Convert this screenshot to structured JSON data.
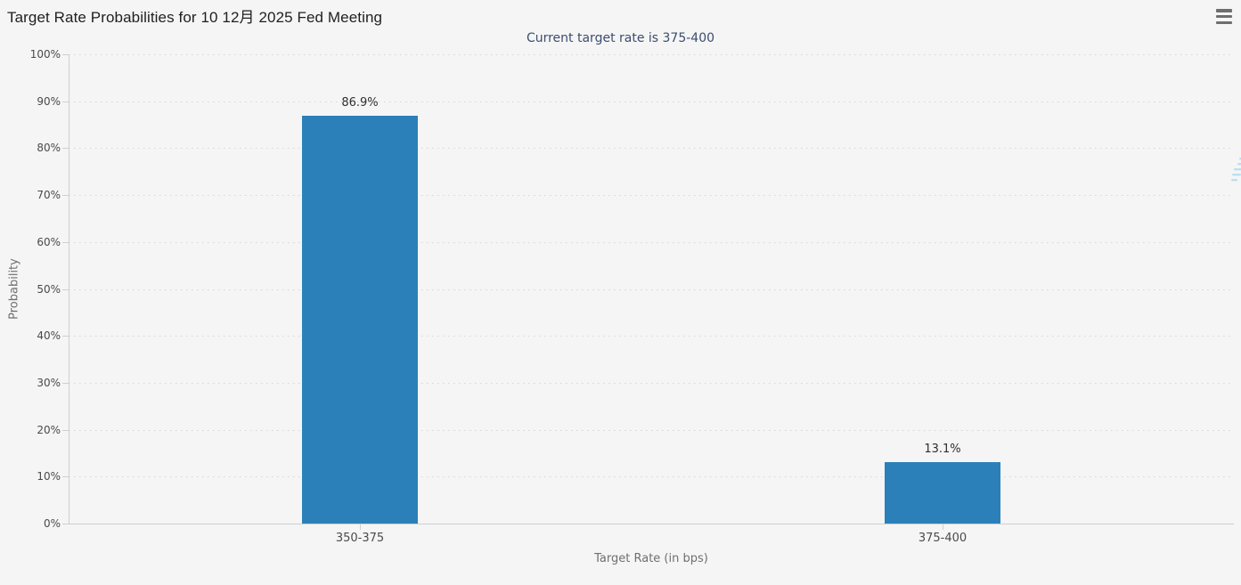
{
  "page": {
    "title": "Target Rate Probabilities for 10 12月 2025 Fed Meeting",
    "menu_icon": "hamburger-menu-icon",
    "watermark_letter": "Q"
  },
  "colors": {
    "background": "#f5f5f5",
    "bar": "#2b80b9",
    "title_text": "#1f1f1f",
    "subtitle_text": "#3c4d6e",
    "menu_icon": "#6e6e6e",
    "axis_line": "#cfcfcf",
    "grid_dots": "#d5d5d5"
  },
  "chart_data": {
    "type": "bar",
    "title": "Target Rate Probabilities for 10 12月 2025 Fed Meeting",
    "subtitle": "Current target rate is 375-400",
    "categories": [
      "350-375",
      "375-400"
    ],
    "values": [
      86.9,
      13.1
    ],
    "value_labels": [
      "86.9%",
      "13.1%"
    ],
    "xlabel": "Target Rate (in bps)",
    "ylabel": "Probability",
    "ylim": [
      0,
      100
    ],
    "ytick_step": 10,
    "ytick_labels": [
      "0%",
      "10%",
      "20%",
      "30%",
      "40%",
      "50%",
      "60%",
      "70%",
      "80%",
      "90%",
      "100%"
    ],
    "grid": "horizontal-dotted",
    "legend": "none"
  }
}
